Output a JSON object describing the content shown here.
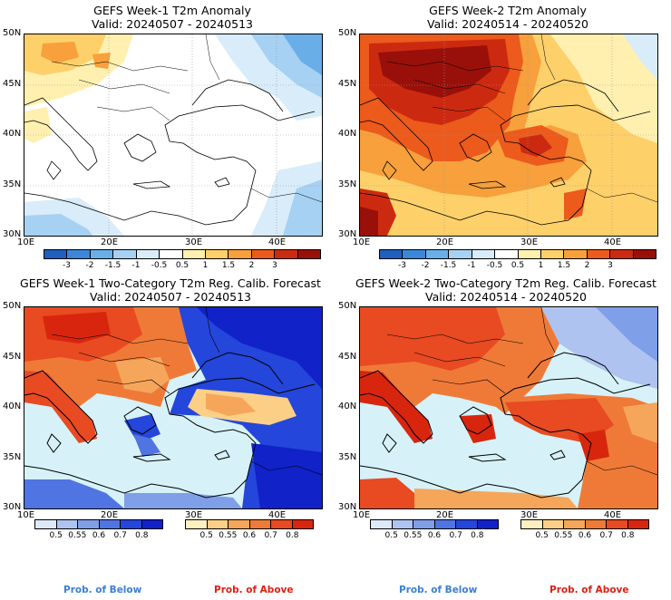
{
  "panels": [
    {
      "id": "p1",
      "title": "GEFS Week-1 T2m Anomaly",
      "subtitle": "Valid: 20240507 - 20240513"
    },
    {
      "id": "p2",
      "title": "GEFS Week-2 T2m Anomaly",
      "subtitle": "Valid: 20240514 - 20240520"
    },
    {
      "id": "p3",
      "title": "GEFS Week-1 Two-Category T2m Reg. Calib. Forecast",
      "subtitle": "Valid: 20240507 - 20240513"
    },
    {
      "id": "p4",
      "title": "GEFS Week-2 Two-Category T2m Reg. Calib. Forecast",
      "subtitle": "Valid: 20240514 - 20240520"
    }
  ],
  "axes": {
    "lat_labels": [
      "50N",
      "45N",
      "40N",
      "35N",
      "30N"
    ],
    "lon_labels": [
      "10E",
      "20E",
      "30E",
      "40E"
    ]
  },
  "anomaly_colorbar": {
    "labels": [
      "-3",
      "-2",
      "-1.5",
      "-1",
      "-0.5",
      "0.5",
      "1",
      "1.5",
      "2",
      "3"
    ],
    "colors": [
      "#1f5fbf",
      "#3a86d9",
      "#6aaee8",
      "#a6d1f2",
      "#d8ecfa",
      "#ffffff",
      "#fff0b0",
      "#fdd06a",
      "#f7a03c",
      "#ec5a1c",
      "#cc2a10",
      "#99100a"
    ]
  },
  "below_colorbar": {
    "labels": [
      "0.5",
      "0.55",
      "0.6",
      "0.7",
      "0.8"
    ],
    "colors": [
      "#dde8f8",
      "#aec3f0",
      "#7f9fe8",
      "#5074e2",
      "#2446da",
      "#1022c8"
    ]
  },
  "above_colorbar": {
    "labels": [
      "0.5",
      "0.55",
      "0.6",
      "0.7",
      "0.8"
    ],
    "colors": [
      "#fdf0c0",
      "#fbcf86",
      "#f6a65a",
      "#ef7a38",
      "#e84a22",
      "#d8260e"
    ]
  },
  "prob_labels": {
    "below": "Prob. of Below",
    "above": "Prob. of Above"
  },
  "colors": {
    "sea_calib": "#d6f2f8",
    "below_text": "#3a7fd9",
    "above_text": "#e0200f"
  }
}
